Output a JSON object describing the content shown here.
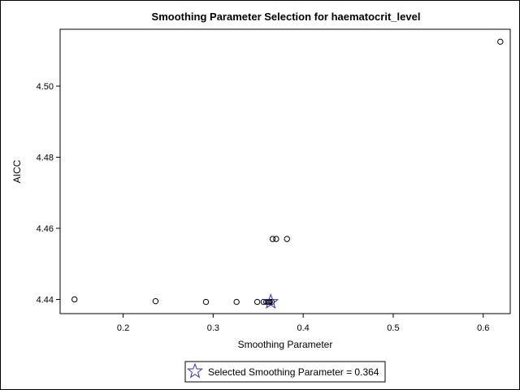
{
  "chart_data": {
    "type": "scatter",
    "title": "Smoothing Parameter Selection for haematocrit_level",
    "xlabel": "Smoothing Parameter",
    "ylabel": "AICC",
    "xlim": [
      0.13,
      0.63
    ],
    "ylim": [
      4.436,
      4.516
    ],
    "xticks": [
      0.2,
      0.3,
      0.4,
      0.5,
      0.6
    ],
    "xtick_labels": [
      "0.2",
      "0.3",
      "0.4",
      "0.5",
      "0.6"
    ],
    "yticks": [
      4.44,
      4.46,
      4.48,
      4.5
    ],
    "ytick_labels": [
      "4.44",
      "4.46",
      "4.48",
      "4.50"
    ],
    "grid": false,
    "legend_position": "bottom-center",
    "series": [
      {
        "marker": "circle",
        "points": [
          {
            "x": 0.146,
            "y": 4.44
          },
          {
            "x": 0.236,
            "y": 4.4395
          },
          {
            "x": 0.292,
            "y": 4.4393
          },
          {
            "x": 0.326,
            "y": 4.4393
          },
          {
            "x": 0.349,
            "y": 4.4393
          },
          {
            "x": 0.356,
            "y": 4.4393
          },
          {
            "x": 0.359,
            "y": 4.4393
          },
          {
            "x": 0.361,
            "y": 4.4393
          },
          {
            "x": 0.362,
            "y": 4.4393
          },
          {
            "x": 0.363,
            "y": 4.4393
          },
          {
            "x": 0.365,
            "y": 4.4393
          },
          {
            "x": 0.366,
            "y": 4.457
          },
          {
            "x": 0.37,
            "y": 4.457
          },
          {
            "x": 0.382,
            "y": 4.457
          },
          {
            "x": 0.619,
            "y": 4.5125
          }
        ]
      }
    ],
    "selected": {
      "x": 0.364,
      "y": 4.4393,
      "marker": "star",
      "color": "#3333aa",
      "label": "Selected Smoothing Parameter = 0.364"
    }
  }
}
